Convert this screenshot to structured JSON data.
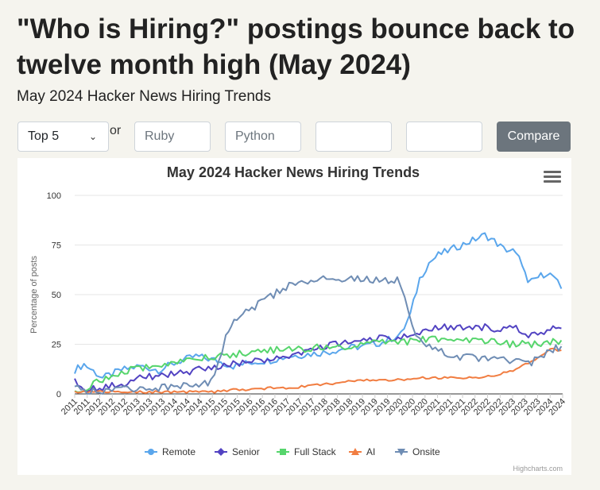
{
  "page": {
    "headline": "\"Who is Hiring?\" postings bounce back to twelve month high (May 2024)",
    "subheading": "May 2024 Hacker News Hiring Trends"
  },
  "controls": {
    "select_value": "Top 5",
    "or_label": "or",
    "inputs": [
      {
        "placeholder": "Ruby",
        "value": ""
      },
      {
        "placeholder": "Python",
        "value": ""
      },
      {
        "placeholder": "",
        "value": ""
      },
      {
        "placeholder": "",
        "value": ""
      }
    ],
    "compare_label": "Compare"
  },
  "chart_icons": {
    "menu": "hamburger-menu-icon"
  },
  "chart_data": {
    "type": "line",
    "title": "May 2024 Hacker News Hiring Trends",
    "ylabel": "Percentage of posts",
    "xlabel": "",
    "ylim": [
      0,
      100
    ],
    "yticks": [
      0,
      25,
      50,
      75,
      100
    ],
    "x_tick_labels": [
      "2011",
      "2011",
      "2012",
      "2012",
      "2012",
      "2013",
      "2013",
      "2013",
      "2014",
      "2014",
      "2014",
      "2015",
      "2015",
      "2015",
      "2016",
      "2016",
      "2016",
      "2017",
      "2017",
      "2017",
      "2018",
      "2018",
      "2018",
      "2019",
      "2019",
      "2019",
      "2020",
      "2020",
      "2020",
      "2021",
      "2021",
      "2021",
      "2022",
      "2022",
      "2022",
      "2023",
      "2023",
      "2023",
      "2024",
      "2024"
    ],
    "legend_position": "bottom",
    "credits": "Highcharts.com",
    "x_start": "2011-04",
    "x_end": "2024-05",
    "series": [
      {
        "name": "Remote",
        "color": "#5aa6ec",
        "marker": "circle",
        "points": [
          [
            2011.25,
            12
          ],
          [
            2011.5,
            15
          ],
          [
            2012.0,
            8
          ],
          [
            2012.5,
            12
          ],
          [
            2013.0,
            14
          ],
          [
            2013.5,
            12
          ],
          [
            2014.0,
            16
          ],
          [
            2014.5,
            19
          ],
          [
            2015.0,
            17
          ],
          [
            2015.5,
            14
          ],
          [
            2016.0,
            16
          ],
          [
            2016.5,
            17
          ],
          [
            2017.0,
            19
          ],
          [
            2017.5,
            20
          ],
          [
            2018.0,
            21
          ],
          [
            2018.5,
            23
          ],
          [
            2019.0,
            24
          ],
          [
            2019.5,
            26
          ],
          [
            2020.0,
            30
          ],
          [
            2020.25,
            40
          ],
          [
            2020.5,
            58
          ],
          [
            2020.75,
            66
          ],
          [
            2021.0,
            70
          ],
          [
            2021.5,
            74
          ],
          [
            2021.75,
            76
          ],
          [
            2022.0,
            78
          ],
          [
            2022.25,
            80
          ],
          [
            2022.5,
            77
          ],
          [
            2022.75,
            73
          ],
          [
            2023.0,
            72
          ],
          [
            2023.25,
            66
          ],
          [
            2023.4,
            55
          ],
          [
            2023.6,
            58
          ],
          [
            2023.9,
            61
          ],
          [
            2024.1,
            59
          ],
          [
            2024.3,
            53
          ]
        ]
      },
      {
        "name": "Senior",
        "color": "#5243c2",
        "marker": "diamond",
        "points": [
          [
            2011.25,
            6
          ],
          [
            2011.5,
            3
          ],
          [
            2012.0,
            3
          ],
          [
            2012.5,
            5
          ],
          [
            2013.0,
            8
          ],
          [
            2013.5,
            9
          ],
          [
            2014.0,
            10
          ],
          [
            2014.5,
            12
          ],
          [
            2015.0,
            13
          ],
          [
            2015.5,
            15
          ],
          [
            2016.0,
            16
          ],
          [
            2016.5,
            18
          ],
          [
            2017.0,
            19
          ],
          [
            2017.5,
            22
          ],
          [
            2018.0,
            24
          ],
          [
            2018.5,
            26
          ],
          [
            2019.0,
            27
          ],
          [
            2019.5,
            28
          ],
          [
            2020.0,
            28
          ],
          [
            2020.5,
            30
          ],
          [
            2020.75,
            33
          ],
          [
            2021.0,
            33
          ],
          [
            2021.5,
            34
          ],
          [
            2022.0,
            34
          ],
          [
            2022.5,
            33
          ],
          [
            2023.0,
            33
          ],
          [
            2023.25,
            32
          ],
          [
            2023.5,
            29
          ],
          [
            2023.75,
            31
          ],
          [
            2024.0,
            33
          ],
          [
            2024.3,
            33
          ]
        ]
      },
      {
        "name": "Full Stack",
        "color": "#56d56c",
        "marker": "square",
        "points": [
          [
            2011.25,
            2
          ],
          [
            2011.5,
            3
          ],
          [
            2012.0,
            7
          ],
          [
            2012.5,
            11
          ],
          [
            2013.0,
            13
          ],
          [
            2013.5,
            15
          ],
          [
            2014.0,
            16
          ],
          [
            2014.5,
            18
          ],
          [
            2015.0,
            19
          ],
          [
            2015.5,
            20
          ],
          [
            2016.0,
            21
          ],
          [
            2016.5,
            22
          ],
          [
            2017.0,
            22
          ],
          [
            2017.5,
            23
          ],
          [
            2018.0,
            24
          ],
          [
            2018.5,
            24
          ],
          [
            2019.0,
            25
          ],
          [
            2019.5,
            26
          ],
          [
            2020.0,
            26
          ],
          [
            2020.5,
            27
          ],
          [
            2021.0,
            28
          ],
          [
            2021.5,
            27
          ],
          [
            2022.0,
            27
          ],
          [
            2022.5,
            26
          ],
          [
            2023.0,
            25
          ],
          [
            2023.5,
            25
          ],
          [
            2024.0,
            26
          ],
          [
            2024.3,
            27
          ]
        ]
      },
      {
        "name": "AI",
        "color": "#f17d41",
        "marker": "triangle",
        "points": [
          [
            2011.25,
            1
          ],
          [
            2012.0,
            1
          ],
          [
            2013.0,
            1
          ],
          [
            2014.0,
            1
          ],
          [
            2015.0,
            1
          ],
          [
            2015.5,
            2
          ],
          [
            2016.0,
            2
          ],
          [
            2016.5,
            3
          ],
          [
            2017.0,
            3
          ],
          [
            2017.5,
            4
          ],
          [
            2018.0,
            5
          ],
          [
            2018.5,
            6
          ],
          [
            2019.0,
            7
          ],
          [
            2019.5,
            7
          ],
          [
            2020.0,
            7
          ],
          [
            2020.5,
            8
          ],
          [
            2021.0,
            8
          ],
          [
            2021.5,
            8
          ],
          [
            2022.0,
            8
          ],
          [
            2022.5,
            9
          ],
          [
            2023.0,
            12
          ],
          [
            2023.5,
            16
          ],
          [
            2023.75,
            19
          ],
          [
            2024.0,
            23
          ],
          [
            2024.2,
            22
          ],
          [
            2024.3,
            22
          ]
        ]
      },
      {
        "name": "Onsite",
        "color": "#6f8db4",
        "marker": "triangle-down",
        "points": [
          [
            2011.25,
            3
          ],
          [
            2011.5,
            2
          ],
          [
            2012.0,
            1
          ],
          [
            2012.5,
            2
          ],
          [
            2013.0,
            3
          ],
          [
            2013.5,
            3
          ],
          [
            2014.0,
            4
          ],
          [
            2014.5,
            5
          ],
          [
            2014.9,
            6
          ],
          [
            2015.1,
            15
          ],
          [
            2015.3,
            30
          ],
          [
            2015.6,
            38
          ],
          [
            2016.0,
            43
          ],
          [
            2016.5,
            49
          ],
          [
            2017.0,
            55
          ],
          [
            2017.5,
            57
          ],
          [
            2018.0,
            58
          ],
          [
            2018.5,
            58
          ],
          [
            2019.0,
            58
          ],
          [
            2019.5,
            57
          ],
          [
            2019.9,
            57
          ],
          [
            2020.0,
            55
          ],
          [
            2020.2,
            40
          ],
          [
            2020.4,
            30
          ],
          [
            2020.6,
            26
          ],
          [
            2021.0,
            22
          ],
          [
            2021.5,
            19
          ],
          [
            2022.0,
            18
          ],
          [
            2022.5,
            18
          ],
          [
            2023.0,
            17
          ],
          [
            2023.5,
            16
          ],
          [
            2024.0,
            22
          ],
          [
            2024.3,
            24
          ]
        ]
      }
    ]
  }
}
